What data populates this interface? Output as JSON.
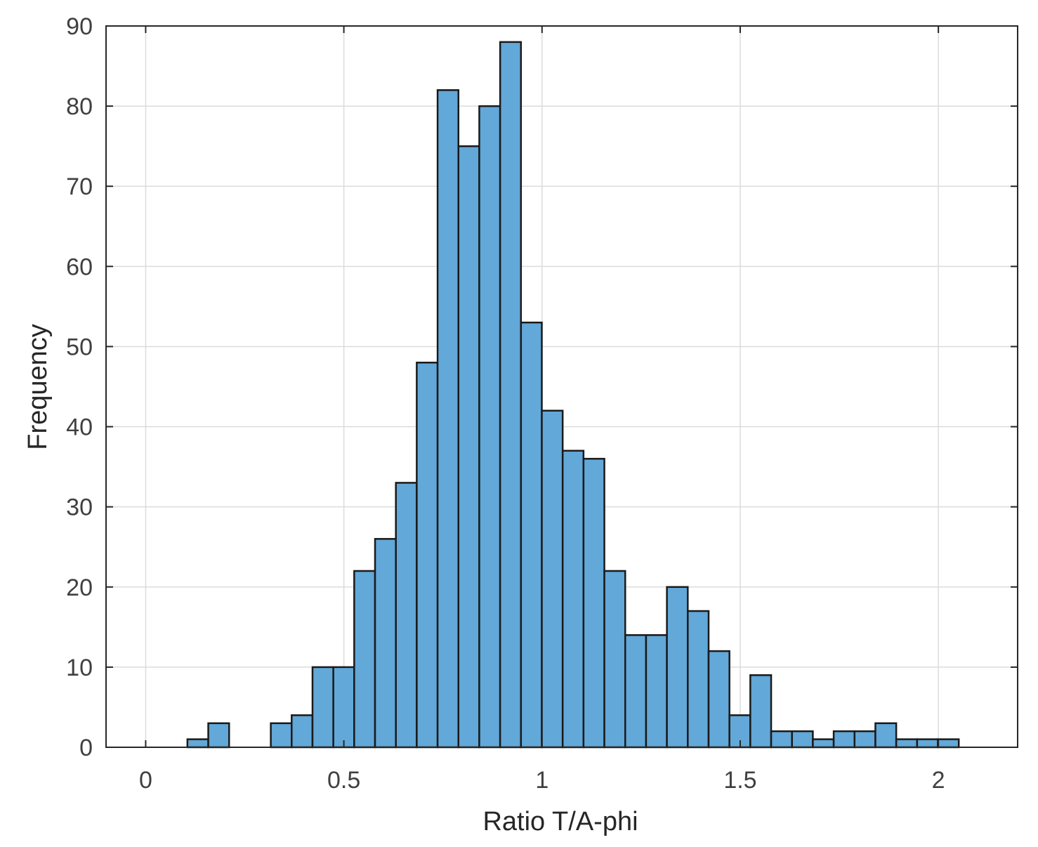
{
  "chart_data": {
    "type": "bar",
    "subtype": "histogram",
    "title": "",
    "xlabel": "Ratio T/A-phi",
    "ylabel": "Frequency",
    "xlim": [
      -0.1,
      2.2
    ],
    "ylim": [
      0,
      90
    ],
    "grid": true,
    "bin_width": 0.0526,
    "bin_edges_start": 0.1053,
    "counts": [
      1,
      3,
      0,
      0,
      3,
      4,
      10,
      10,
      22,
      26,
      33,
      48,
      82,
      75,
      80,
      88,
      53,
      42,
      37,
      36,
      22,
      14,
      14,
      20,
      17,
      12,
      4,
      9,
      2,
      2,
      1,
      2,
      2,
      3,
      1,
      1,
      1
    ],
    "x_ticks": [
      0,
      0.5,
      1,
      1.5,
      2
    ],
    "x_tick_labels": [
      "0",
      "0.5",
      "1",
      "1.5",
      "2"
    ],
    "y_ticks": [
      0,
      10,
      20,
      30,
      40,
      50,
      60,
      70,
      80,
      90
    ],
    "y_tick_labels": [
      "0",
      "10",
      "20",
      "30",
      "40",
      "50",
      "60",
      "70",
      "80",
      "90"
    ],
    "colors": {
      "bar_fill": "#62a8d8",
      "bar_edge": "#1a1a1a",
      "grid": "#dcdcdc",
      "axis": "#262626"
    }
  }
}
